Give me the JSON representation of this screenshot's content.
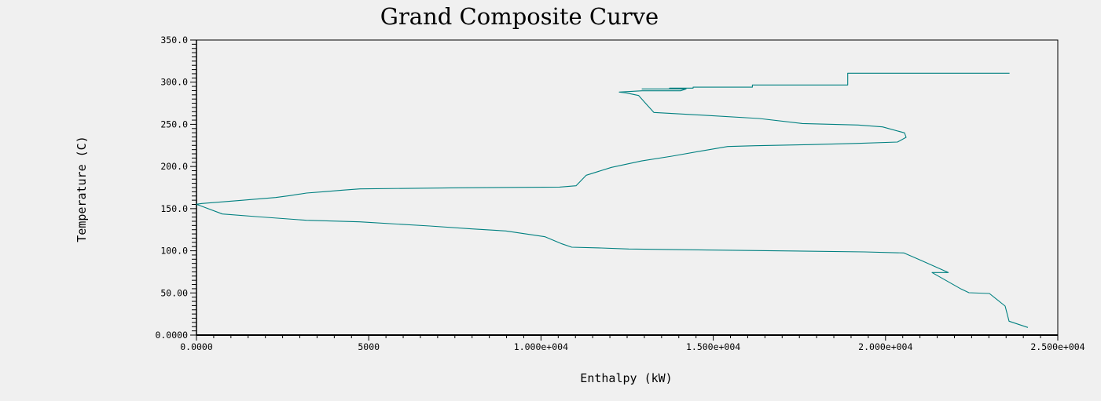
{
  "chart_data": {
    "type": "line",
    "title": "Grand Composite Curve",
    "xlabel": "Enthalpy (kW)",
    "ylabel": "Temperature (C)",
    "xlim": [
      0,
      25000
    ],
    "ylim": [
      0,
      350
    ],
    "grid": false,
    "x_ticks": [
      0,
      5000,
      10000,
      15000,
      20000,
      25000
    ],
    "x_tick_labels": [
      "0.0000",
      "5000",
      "1.000e+004",
      "1.500e+004",
      "2.000e+004",
      "2.500e+004"
    ],
    "x_minor_step": 500,
    "y_ticks": [
      0,
      50,
      100,
      150,
      200,
      250,
      300,
      350
    ],
    "y_tick_labels": [
      "0.0000",
      "50.00",
      "100.0",
      "150.0",
      "200.0",
      "250.0",
      "300.0",
      "350.0"
    ],
    "y_minor_step": 5,
    "colors": {
      "series": "#008080",
      "axis": "#000000"
    },
    "series": [
      {
        "name": "Grand Composite Curve",
        "x": [
          23599,
          18903,
          18903,
          16136,
          16136,
          14416,
          14416,
          13732,
          13732,
          12933,
          14211,
          14051,
          12933,
          12272,
          12477,
          12835,
          13002,
          13275,
          14667,
          16332,
          17587,
          19206,
          19913,
          20552,
          20597,
          20347,
          19206,
          17792,
          16218,
          15420,
          14667,
          13800,
          12922,
          12044,
          11314,
          11017,
          10538,
          7609,
          4744,
          4243,
          3695,
          3193,
          2705,
          2297,
          1848,
          1300,
          730,
          160,
          0,
          753,
          1727,
          3193,
          4742,
          6775,
          8000,
          8978,
          10119,
          10607,
          10892,
          11747,
          12546,
          19389,
          20529,
          21054,
          21822,
          21350,
          22194,
          22422,
          23015,
          23471,
          23586,
          24133
        ],
        "y": [
          310.6,
          310.6,
          296.7,
          296.7,
          294.1,
          294.1,
          292.9,
          292.9,
          292.0,
          292.0,
          292.0,
          289.8,
          289.8,
          288.3,
          287.3,
          284.2,
          276.5,
          264.1,
          260.9,
          256.9,
          251.0,
          249.2,
          247.0,
          239.9,
          234.6,
          229.0,
          227.4,
          225.9,
          224.6,
          223.7,
          218.5,
          212.2,
          206.6,
          198.9,
          189.6,
          177.1,
          175.6,
          174.7,
          173.4,
          171.9,
          170.1,
          168.5,
          165.4,
          163.2,
          161.7,
          159.8,
          158.0,
          156.1,
          155.2,
          143.6,
          140.6,
          136.2,
          134.3,
          129.4,
          125.9,
          123.5,
          116.6,
          108.3,
          104.3,
          103.3,
          102.1,
          98.7,
          97.5,
          88.2,
          74.2,
          74.2,
          54.6,
          50.3,
          49.3,
          34.4,
          16.5,
          9.0
        ]
      }
    ]
  }
}
